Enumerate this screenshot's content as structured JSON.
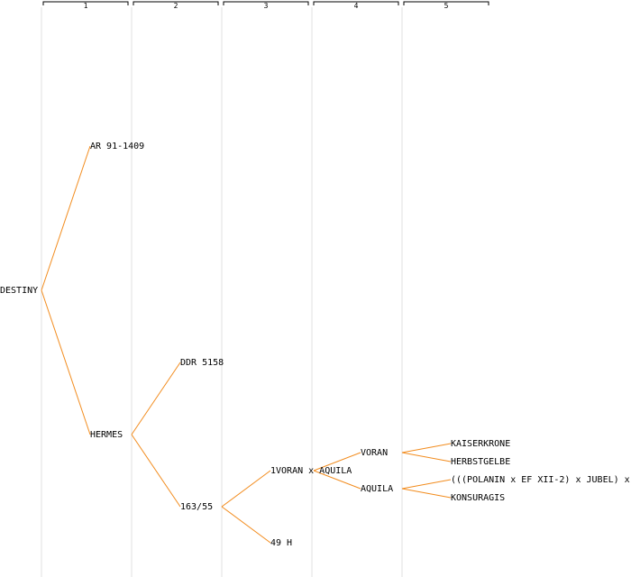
{
  "generations": [
    "1",
    "2",
    "3",
    "4",
    "5"
  ],
  "nodes": [
    {
      "id": "n0",
      "gen": 0,
      "row": 16,
      "label": "DESTINY"
    },
    {
      "id": "n1",
      "gen": 1,
      "row": 8,
      "label": "AR 91-1409"
    },
    {
      "id": "n2",
      "gen": 1,
      "row": 24,
      "label": "HERMES"
    },
    {
      "id": "n3",
      "gen": 2,
      "row": 20,
      "label": "DDR 5158"
    },
    {
      "id": "n4",
      "gen": 2,
      "row": 28,
      "label": "163/55"
    },
    {
      "id": "n5",
      "gen": 3,
      "row": 26,
      "label": "1VORAN x AQUILA"
    },
    {
      "id": "n6",
      "gen": 3,
      "row": 30,
      "label": "49 H"
    },
    {
      "id": "n7",
      "gen": 4,
      "row": 25,
      "label": "VORAN"
    },
    {
      "id": "n8",
      "gen": 4,
      "row": 27,
      "label": "AQUILA"
    },
    {
      "id": "n9",
      "gen": 5,
      "row": 24.5,
      "label": "KAISERKRONE"
    },
    {
      "id": "n10",
      "gen": 5,
      "row": 25.5,
      "label": "HERBSTGELBE"
    },
    {
      "id": "n11",
      "gen": 5,
      "row": 26.5,
      "label": "(((POLANIN x EF XII-2) x JUBEL) x"
    },
    {
      "id": "n12",
      "gen": 5,
      "row": 27.5,
      "label": "KONSURAGIS"
    }
  ],
  "edges": [
    [
      "n0",
      "n1"
    ],
    [
      "n0",
      "n2"
    ],
    [
      "n2",
      "n3"
    ],
    [
      "n2",
      "n4"
    ],
    [
      "n4",
      "n5"
    ],
    [
      "n4",
      "n6"
    ],
    [
      "n5",
      "n7"
    ],
    [
      "n5",
      "n8"
    ],
    [
      "n7",
      "n9"
    ],
    [
      "n7",
      "n10"
    ],
    [
      "n8",
      "n11"
    ],
    [
      "n8",
      "n12"
    ]
  ],
  "colors": {
    "edge": "#f28c1e",
    "column_line": "#e2e2e2",
    "text": "#000000",
    "background": "#ffffff"
  }
}
